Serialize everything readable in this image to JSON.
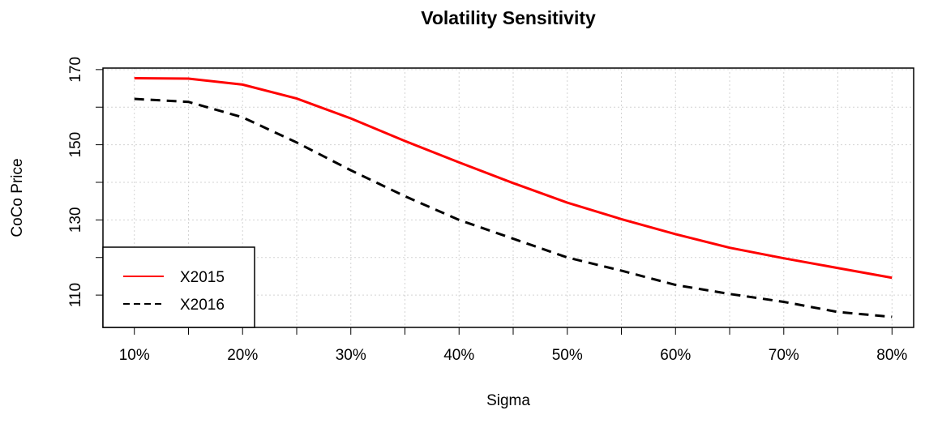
{
  "chart_data": {
    "type": "line",
    "title": "Volatility Sensitivity",
    "x_label": "Sigma",
    "y_label": "CoCo Price",
    "x": [
      0.1,
      0.15,
      0.2,
      0.25,
      0.3,
      0.35,
      0.4,
      0.45,
      0.5,
      0.55,
      0.6,
      0.65,
      0.7,
      0.75,
      0.8
    ],
    "series": [
      {
        "name": "X2015",
        "color": "#ff0000",
        "dash": "solid",
        "values": [
          167.7,
          167.6,
          166.0,
          162.3,
          157.0,
          151.0,
          145.3,
          139.8,
          134.6,
          130.2,
          126.2,
          122.6,
          119.8,
          117.2,
          114.6
        ]
      },
      {
        "name": "X2016",
        "color": "#000000",
        "dash": "dashed",
        "values": [
          162.2,
          161.4,
          157.3,
          150.6,
          143.2,
          136.3,
          130.0,
          125.0,
          120.0,
          116.5,
          112.7,
          110.3,
          108.2,
          105.5,
          104.2
        ]
      }
    ],
    "xlim": [
      0.071,
      0.82
    ],
    "ylim": [
      101.4,
      170.4
    ],
    "xticks": [
      {
        "value": 0.1,
        "label": "10%"
      },
      {
        "value": 0.2,
        "label": "20%"
      },
      {
        "value": 0.3,
        "label": "30%"
      },
      {
        "value": 0.4,
        "label": "40%"
      },
      {
        "value": 0.5,
        "label": "50%"
      },
      {
        "value": 0.6,
        "label": "60%"
      },
      {
        "value": 0.7,
        "label": "70%"
      },
      {
        "value": 0.8,
        "label": "80%"
      }
    ],
    "xminor": [
      0.15,
      0.25,
      0.35,
      0.45,
      0.55,
      0.65,
      0.75
    ],
    "yticks": [
      110,
      130,
      150,
      170
    ],
    "yminor": [
      120,
      140,
      160
    ],
    "grid": true,
    "legend_position": "bottom-left"
  }
}
